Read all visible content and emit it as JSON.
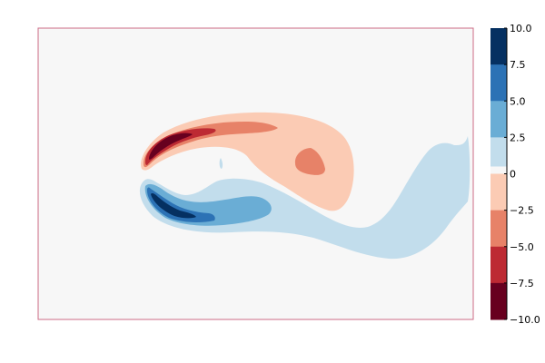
{
  "chart_data": {
    "type": "heatmap",
    "subtype": "filled-contour",
    "title": "",
    "xlabel": "",
    "ylabel": "",
    "grid": false,
    "colormap": "RdBu",
    "colorbar": {
      "placement": "right",
      "range": [
        -10.0,
        10.0
      ],
      "levels": [
        -10.0,
        -7.5,
        -5.0,
        -2.5,
        0.0,
        2.5,
        5.0,
        7.5,
        10.0
      ],
      "tick_labels": [
        "10.0",
        "7.5",
        "5.0",
        "2.5",
        "0",
        "−2.5",
        "−5.0",
        "−7.5",
        "−10.0"
      ],
      "tick_values": [
        10.0,
        7.5,
        5.0,
        2.5,
        0.0,
        -2.5,
        -5.0,
        -7.5,
        -10.0
      ],
      "bands": [
        {
          "range": [
            7.5,
            10.0
          ],
          "color": "#053061"
        },
        {
          "range": [
            5.0,
            7.5
          ],
          "color": "#2c72b5"
        },
        {
          "range": [
            2.5,
            5.0
          ],
          "color": "#6aadd5"
        },
        {
          "range": [
            0.0,
            2.5
          ],
          "color": "#c2ddec"
        },
        {
          "range": [
            -0.5,
            0.5
          ],
          "color": "#f7f7f7"
        },
        {
          "range": [
            -2.5,
            0.0
          ],
          "color": "#fbcbb4"
        },
        {
          "range": [
            -5.0,
            -2.5
          ],
          "color": "#e78268"
        },
        {
          "range": [
            -7.5,
            -5.0
          ],
          "color": "#bd2a33"
        },
        {
          "range": [
            -10.0,
            -7.5
          ],
          "color": "#67001f"
        }
      ]
    },
    "background_color": "#f7f7f7",
    "frame_color": "#cc6b86"
  }
}
